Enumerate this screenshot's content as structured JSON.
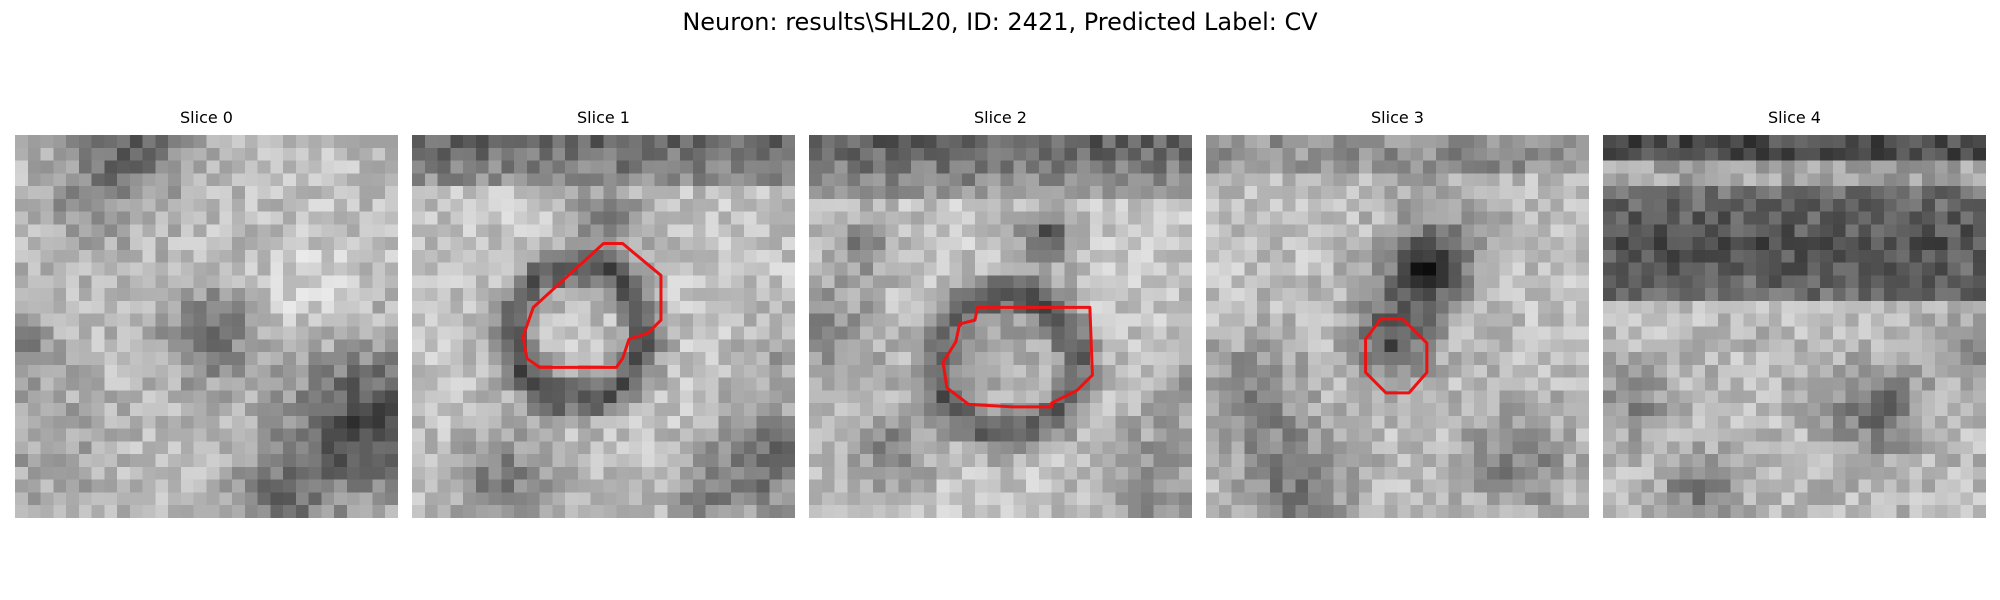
{
  "figure": {
    "title": "Neuron: results\\SHL20, ID: 2421, Predicted Label: CV"
  },
  "contour_color": "#ee1111",
  "panels": [
    {
      "label": "Slice 0",
      "has_contour": false
    },
    {
      "label": "Slice 1",
      "has_contour": true
    },
    {
      "label": "Slice 2",
      "has_contour": true
    },
    {
      "label": "Slice 3",
      "has_contour": true
    },
    {
      "label": "Slice 4",
      "has_contour": false
    }
  ]
}
